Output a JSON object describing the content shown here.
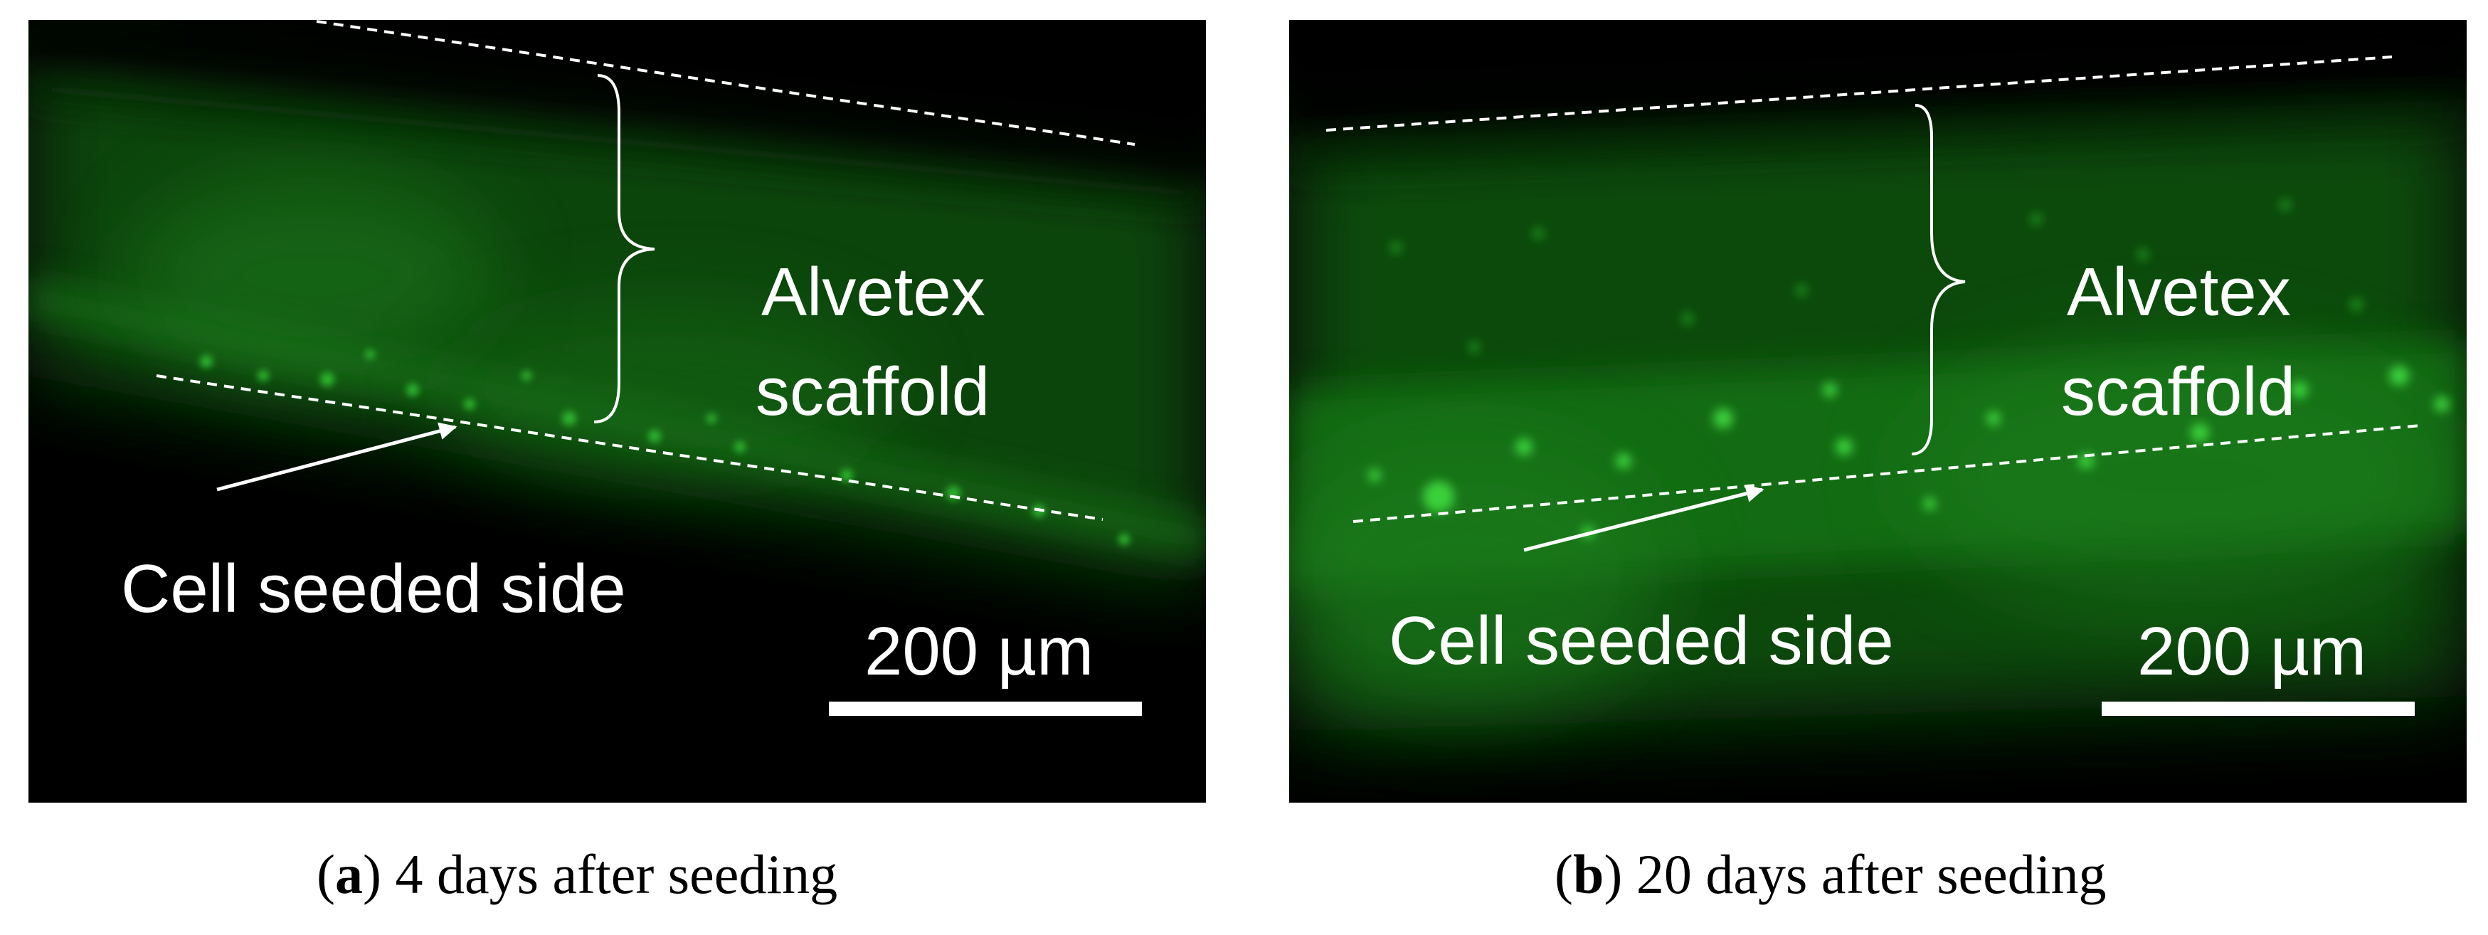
{
  "panels": [
    {
      "letter": "a",
      "caption": "4 days after seeding",
      "region_label_line1": "Alvetex",
      "region_label_line2": "scaffold",
      "arrow_label": "Cell seeded side",
      "scale_bar_label": "200 µm"
    },
    {
      "letter": "b",
      "caption": "20 days after seeding",
      "region_label_line1": "Alvetex",
      "region_label_line2": "scaffold",
      "arrow_label": "Cell seeded side",
      "scale_bar_label": "200 µm"
    }
  ],
  "colors": {
    "fluorescence": "#1f8a1f",
    "background": "#000000",
    "annotation": "#ffffff"
  }
}
